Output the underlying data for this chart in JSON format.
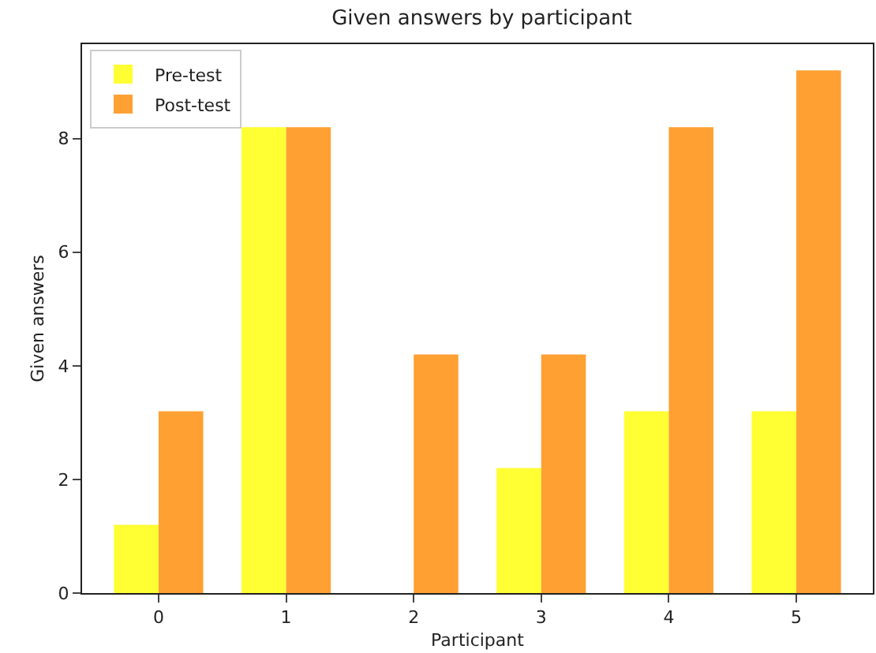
{
  "chart_data": {
    "type": "bar",
    "title": "Given answers by participant",
    "xlabel": "Participant",
    "ylabel": "Given answers",
    "categories": [
      "0",
      "1",
      "2",
      "3",
      "4",
      "5"
    ],
    "series": [
      {
        "name": "Pre-test",
        "color": "#ffff33",
        "values": [
          1.2,
          8.2,
          0,
          2.2,
          3.2,
          3.2
        ]
      },
      {
        "name": "Post-test",
        "color": "#ffa033",
        "values": [
          3.2,
          8.2,
          4.2,
          4.2,
          8.2,
          9.2
        ]
      }
    ],
    "ylim": [
      0,
      9.66
    ],
    "yticks": [
      0,
      2,
      4,
      6,
      8
    ],
    "legend": "top left"
  }
}
